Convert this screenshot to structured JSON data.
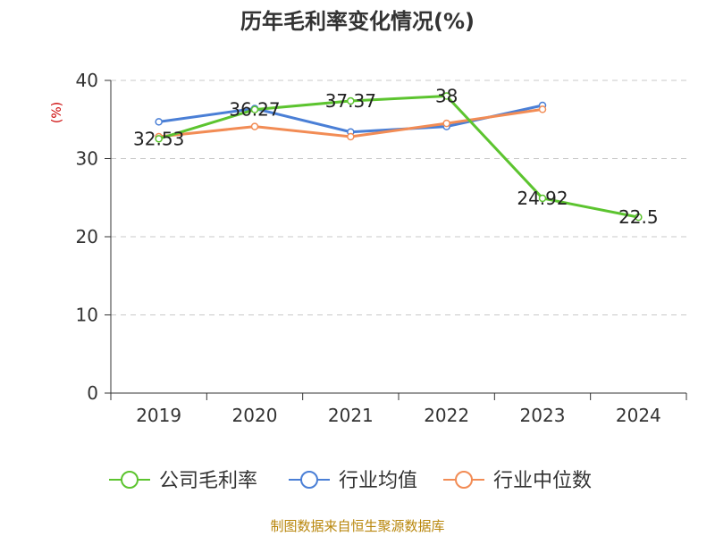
{
  "chart_data": {
    "type": "line",
    "title": "历年毛利率变化情况(%)",
    "ylabel": "(%)",
    "xlabel": "",
    "categories": [
      "2019",
      "2020",
      "2021",
      "2022",
      "2023",
      "2024"
    ],
    "ylim": [
      0,
      40
    ],
    "yticks": [
      0,
      10,
      20,
      30,
      40
    ],
    "grid": "dashed horizontal",
    "legend_position": "bottom",
    "series": [
      {
        "name": "公司毛利率",
        "color": "#5cc42f",
        "values": [
          32.53,
          36.27,
          37.37,
          38,
          24.92,
          22.5
        ],
        "labels": [
          "32.53",
          "36.27",
          "37.37",
          "38",
          "24.92",
          "22.5"
        ]
      },
      {
        "name": "行业均值",
        "color": "#4a7fd6",
        "values": [
          34.7,
          36.4,
          33.4,
          34.1,
          36.8,
          null
        ]
      },
      {
        "name": "行业中位数",
        "color": "#f28c55",
        "values": [
          32.8,
          34.1,
          32.8,
          34.5,
          36.3,
          null
        ]
      }
    ]
  },
  "footer": {
    "source": "制图数据来自恒生聚源数据库"
  }
}
